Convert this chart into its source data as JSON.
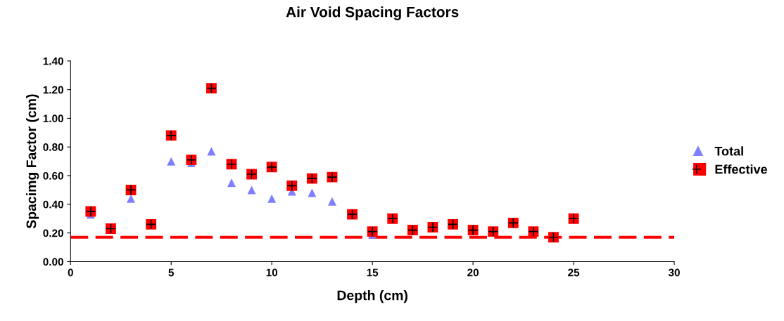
{
  "chart_data": {
    "type": "scatter",
    "title": "Air Void Spacing Factors",
    "xlabel": "Depth (cm)",
    "ylabel": "Spacimg Factor (cm)",
    "x": [
      1,
      2,
      3,
      4,
      5,
      6,
      7,
      8,
      9,
      10,
      11,
      12,
      13,
      14,
      15,
      16,
      17,
      18,
      19,
      20,
      21,
      22,
      23,
      24,
      25
    ],
    "series": [
      {
        "name": "Total",
        "color": "#7f7fff",
        "marker": "triangle",
        "values": [
          0.33,
          null,
          0.44,
          null,
          0.7,
          0.69,
          0.77,
          0.55,
          0.5,
          0.44,
          0.49,
          0.48,
          0.42,
          null,
          0.19,
          null,
          null,
          null,
          null,
          null,
          null,
          null,
          null,
          null,
          null
        ]
      },
      {
        "name": "Effective",
        "color": "#ff0000",
        "marker": "square",
        "values": [
          0.35,
          0.23,
          0.5,
          0.26,
          0.88,
          0.71,
          1.21,
          0.68,
          0.61,
          0.66,
          0.53,
          0.58,
          0.59,
          0.33,
          0.21,
          0.3,
          0.22,
          0.24,
          0.26,
          0.22,
          0.21,
          0.27,
          0.21,
          0.17,
          0.3
        ]
      }
    ],
    "ref_lines": [
      {
        "axis": "y",
        "value": 0.17,
        "color": "#ff0000",
        "line_style": "dashed"
      }
    ],
    "xlim": [
      0,
      30
    ],
    "xticks": [
      0,
      5,
      10,
      15,
      20,
      25,
      30
    ],
    "ylim": [
      0,
      1.4
    ],
    "yticks": [
      {
        "value": 0,
        "label": "0.00"
      },
      {
        "value": 0.2,
        "label": "0.20"
      },
      {
        "value": 0.4,
        "label": "0.40"
      },
      {
        "value": 0.6,
        "label": "0.60"
      },
      {
        "value": 0.8,
        "label": "0.80"
      },
      {
        "value": 1.0,
        "label": "1.00"
      },
      {
        "value": 1.2,
        "label": "1.20"
      },
      {
        "value": 1.4,
        "label": "1.40"
      }
    ],
    "grid": false,
    "legend": "right"
  }
}
